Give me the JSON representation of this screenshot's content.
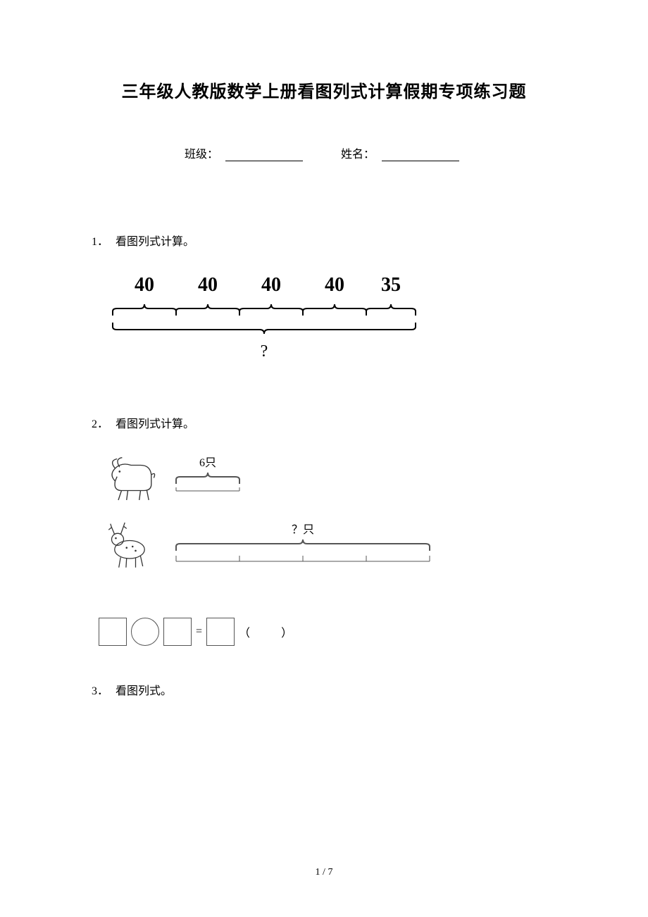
{
  "title": "三年级人教版数学上册看图列式计算假期专项练习题",
  "form": {
    "class_label": "班级：",
    "name_label": "姓名："
  },
  "questions": [
    {
      "num": "1．",
      "text": "看图列式计算。"
    },
    {
      "num": "2．",
      "text": "看图列式计算。"
    },
    {
      "num": "3．",
      "text": "看图列式。"
    }
  ],
  "diagram1": {
    "segments": [
      "40",
      "40",
      "40",
      "40",
      "35"
    ],
    "unknown": "?",
    "font_size_segment": 28,
    "font_size_unknown": 24,
    "segment_width": 90,
    "last_segment_width": 70,
    "bracket_stroke": "#000000",
    "text_color": "#000000"
  },
  "diagram2": {
    "goat": {
      "label": "6只",
      "segments": 1,
      "segment_width": 90
    },
    "deer": {
      "label": "？只",
      "segments": 4,
      "segment_width": 90
    },
    "label_fontsize": 16,
    "bracket_stroke": "#555555"
  },
  "equation": {
    "equal": "=",
    "paren_open": "（",
    "paren_close": "）",
    "paren_gap": "　　"
  },
  "footer": {
    "current": "1",
    "sep": " / ",
    "total": "7"
  }
}
